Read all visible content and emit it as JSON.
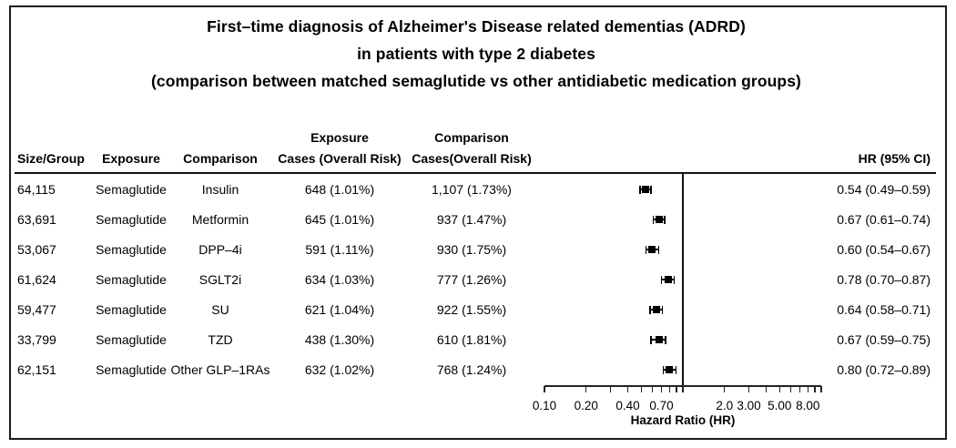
{
  "title": {
    "line1": "First–time diagnosis of Alzheimer's Disease related dementias (ADRD)",
    "line2": "in patients with type 2 diabetes",
    "line3": "(comparison between matched semaglutide vs other antidiabetic medication groups)"
  },
  "table": {
    "headers": {
      "size_group": "Size/Group",
      "exposure": "Exposure",
      "comparison": "Comparison",
      "exposure_cases_line1": "Exposure",
      "exposure_cases_line2": "Cases (Overall Risk)",
      "comparison_cases_line1": "Comparison",
      "comparison_cases_line2": "Cases(Overall Risk)",
      "hr_ci": "HR (95% CI)"
    },
    "rows": [
      {
        "size": "64,115",
        "exposure": "Semaglutide",
        "comparison": "Insulin",
        "exposure_cases": "648 (1.01%)",
        "comparison_cases": "1,107 (1.73%)",
        "hr_ci": "0.54 (0.49–0.59)"
      },
      {
        "size": "63,691",
        "exposure": "Semaglutide",
        "comparison": "Metformin",
        "exposure_cases": "645 (1.01%)",
        "comparison_cases": "937 (1.47%)",
        "hr_ci": "0.67 (0.61–0.74)"
      },
      {
        "size": "53,067",
        "exposure": "Semaglutide",
        "comparison": "DPP–4i",
        "exposure_cases": "591 (1.11%)",
        "comparison_cases": "930 (1.75%)",
        "hr_ci": "0.60 (0.54–0.67)"
      },
      {
        "size": "61,624",
        "exposure": "Semaglutide",
        "comparison": "SGLT2i",
        "exposure_cases": "634 (1.03%)",
        "comparison_cases": "777 (1.26%)",
        "hr_ci": "0.78 (0.70–0.87)"
      },
      {
        "size": "59,477",
        "exposure": "Semaglutide",
        "comparison": "SU",
        "exposure_cases": "621 (1.04%)",
        "comparison_cases": "922 (1.55%)",
        "hr_ci": "0.64 (0.58–0.71)"
      },
      {
        "size": "33,799",
        "exposure": "Semaglutide",
        "comparison": "TZD",
        "exposure_cases": "438 (1.30%)",
        "comparison_cases": "610 (1.81%)",
        "hr_ci": "0.67 (0.59–0.75)"
      },
      {
        "size": "62,151",
        "exposure": "Semaglutide",
        "comparison": "Other GLP–1RAs",
        "exposure_cases": "632 (1.02%)",
        "comparison_cases": "768 (1.24%)",
        "hr_ci": "0.80 (0.72–0.89)"
      }
    ]
  },
  "chart_data": {
    "type": "scatter",
    "variant": "forest-plot",
    "title": "First–time diagnosis of Alzheimer's Disease related dementias (ADRD) in patients with type 2 diabetes (comparison between matched semaglutide vs other antidiabetic medication groups)",
    "xlabel": "Hazard Ratio (HR)",
    "xscale": "log",
    "xlim": [
      0.1,
      10
    ],
    "reference_line": 1.0,
    "grid": false,
    "marker": "black-square-with-ci-whiskers",
    "ticks": [
      {
        "value": 0.1,
        "label": "0.10"
      },
      {
        "value": 0.2,
        "label": "0.20"
      },
      {
        "value": 0.4,
        "label": "0.40"
      },
      {
        "value": 0.7,
        "label": "0.70"
      },
      {
        "value": 2,
        "label": "2.0"
      },
      {
        "value": 3,
        "label": "3.00"
      },
      {
        "value": 5,
        "label": "5.00"
      },
      {
        "value": 8,
        "label": "8.00"
      }
    ],
    "minor_ticks": [
      0.1,
      0.2,
      0.3,
      0.4,
      0.5,
      0.6,
      0.7,
      0.8,
      0.9,
      1,
      2,
      3,
      4,
      5,
      6,
      7,
      8,
      9,
      10
    ],
    "rows": [
      {
        "comparison": "Insulin",
        "hr": 0.54,
        "ci_low": 0.49,
        "ci_high": 0.59
      },
      {
        "comparison": "Metformin",
        "hr": 0.67,
        "ci_low": 0.61,
        "ci_high": 0.74
      },
      {
        "comparison": "DPP–4i",
        "hr": 0.6,
        "ci_low": 0.54,
        "ci_high": 0.67
      },
      {
        "comparison": "SGLT2i",
        "hr": 0.78,
        "ci_low": 0.7,
        "ci_high": 0.87
      },
      {
        "comparison": "SU",
        "hr": 0.64,
        "ci_low": 0.58,
        "ci_high": 0.71
      },
      {
        "comparison": "TZD",
        "hr": 0.67,
        "ci_low": 0.59,
        "ci_high": 0.75
      },
      {
        "comparison": "Other GLP–1RAs",
        "hr": 0.8,
        "ci_low": 0.72,
        "ci_high": 0.89
      }
    ]
  }
}
